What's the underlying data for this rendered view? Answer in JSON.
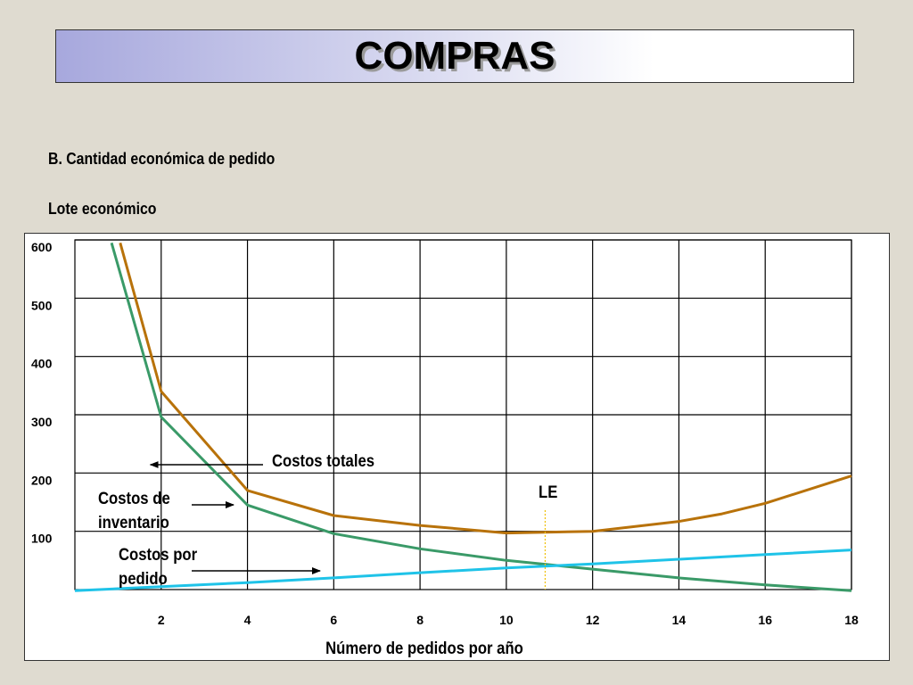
{
  "slide": {
    "title": "COMPRAS",
    "subtitle": "B. Cantidad económica de pedido",
    "section": "Lote económico"
  },
  "chart_data": {
    "type": "line",
    "xlabel": "Número de pedidos por año",
    "ylabel": "",
    "xlim": [
      0,
      18
    ],
    "ylim": [
      0,
      600
    ],
    "x_ticks": [
      2,
      4,
      6,
      8,
      10,
      12,
      14,
      16,
      18
    ],
    "y_ticks": [
      100,
      200,
      300,
      400,
      500,
      600
    ],
    "grid": true,
    "series": [
      {
        "key": "totales",
        "color": "#b8720a",
        "points": [
          [
            1.05,
            595
          ],
          [
            2,
            340
          ],
          [
            4,
            170
          ],
          [
            6,
            127
          ],
          [
            8,
            110
          ],
          [
            10,
            97
          ],
          [
            12,
            100
          ],
          [
            14,
            117
          ],
          [
            15,
            130
          ],
          [
            16,
            148
          ],
          [
            18,
            195
          ]
        ]
      },
      {
        "key": "inventario",
        "color": "#3a9a68",
        "points": [
          [
            0.85,
            595
          ],
          [
            2,
            296
          ],
          [
            4,
            145
          ],
          [
            6,
            96
          ],
          [
            8,
            70
          ],
          [
            10,
            50
          ],
          [
            12,
            35
          ],
          [
            14,
            20
          ],
          [
            16,
            8
          ],
          [
            18,
            -2
          ]
        ]
      },
      {
        "key": "pedido",
        "color": "#1fc3e8",
        "points": [
          [
            0,
            -2
          ],
          [
            2,
            5
          ],
          [
            4,
            12
          ],
          [
            6,
            20
          ],
          [
            8,
            29
          ],
          [
            10,
            37
          ],
          [
            12,
            44
          ],
          [
            14,
            52
          ],
          [
            16,
            60
          ],
          [
            18,
            68
          ]
        ]
      }
    ],
    "annotations": [
      {
        "name": "annotation-costos-totales",
        "text": "Costos totales",
        "arrow_to": [
          1.75,
          210
        ]
      },
      {
        "name": "annotation-costos-inventario",
        "lines": [
          "Costos de",
          "inventario"
        ],
        "arrow_to": [
          1.15,
          145
        ]
      },
      {
        "name": "annotation-costos-pedido",
        "lines": [
          "Costos por",
          "pedido"
        ],
        "arrow_to": [
          5.7,
          31
        ]
      },
      {
        "name": "annotation-le",
        "text": "LE",
        "marker_x": 10.9
      }
    ]
  }
}
